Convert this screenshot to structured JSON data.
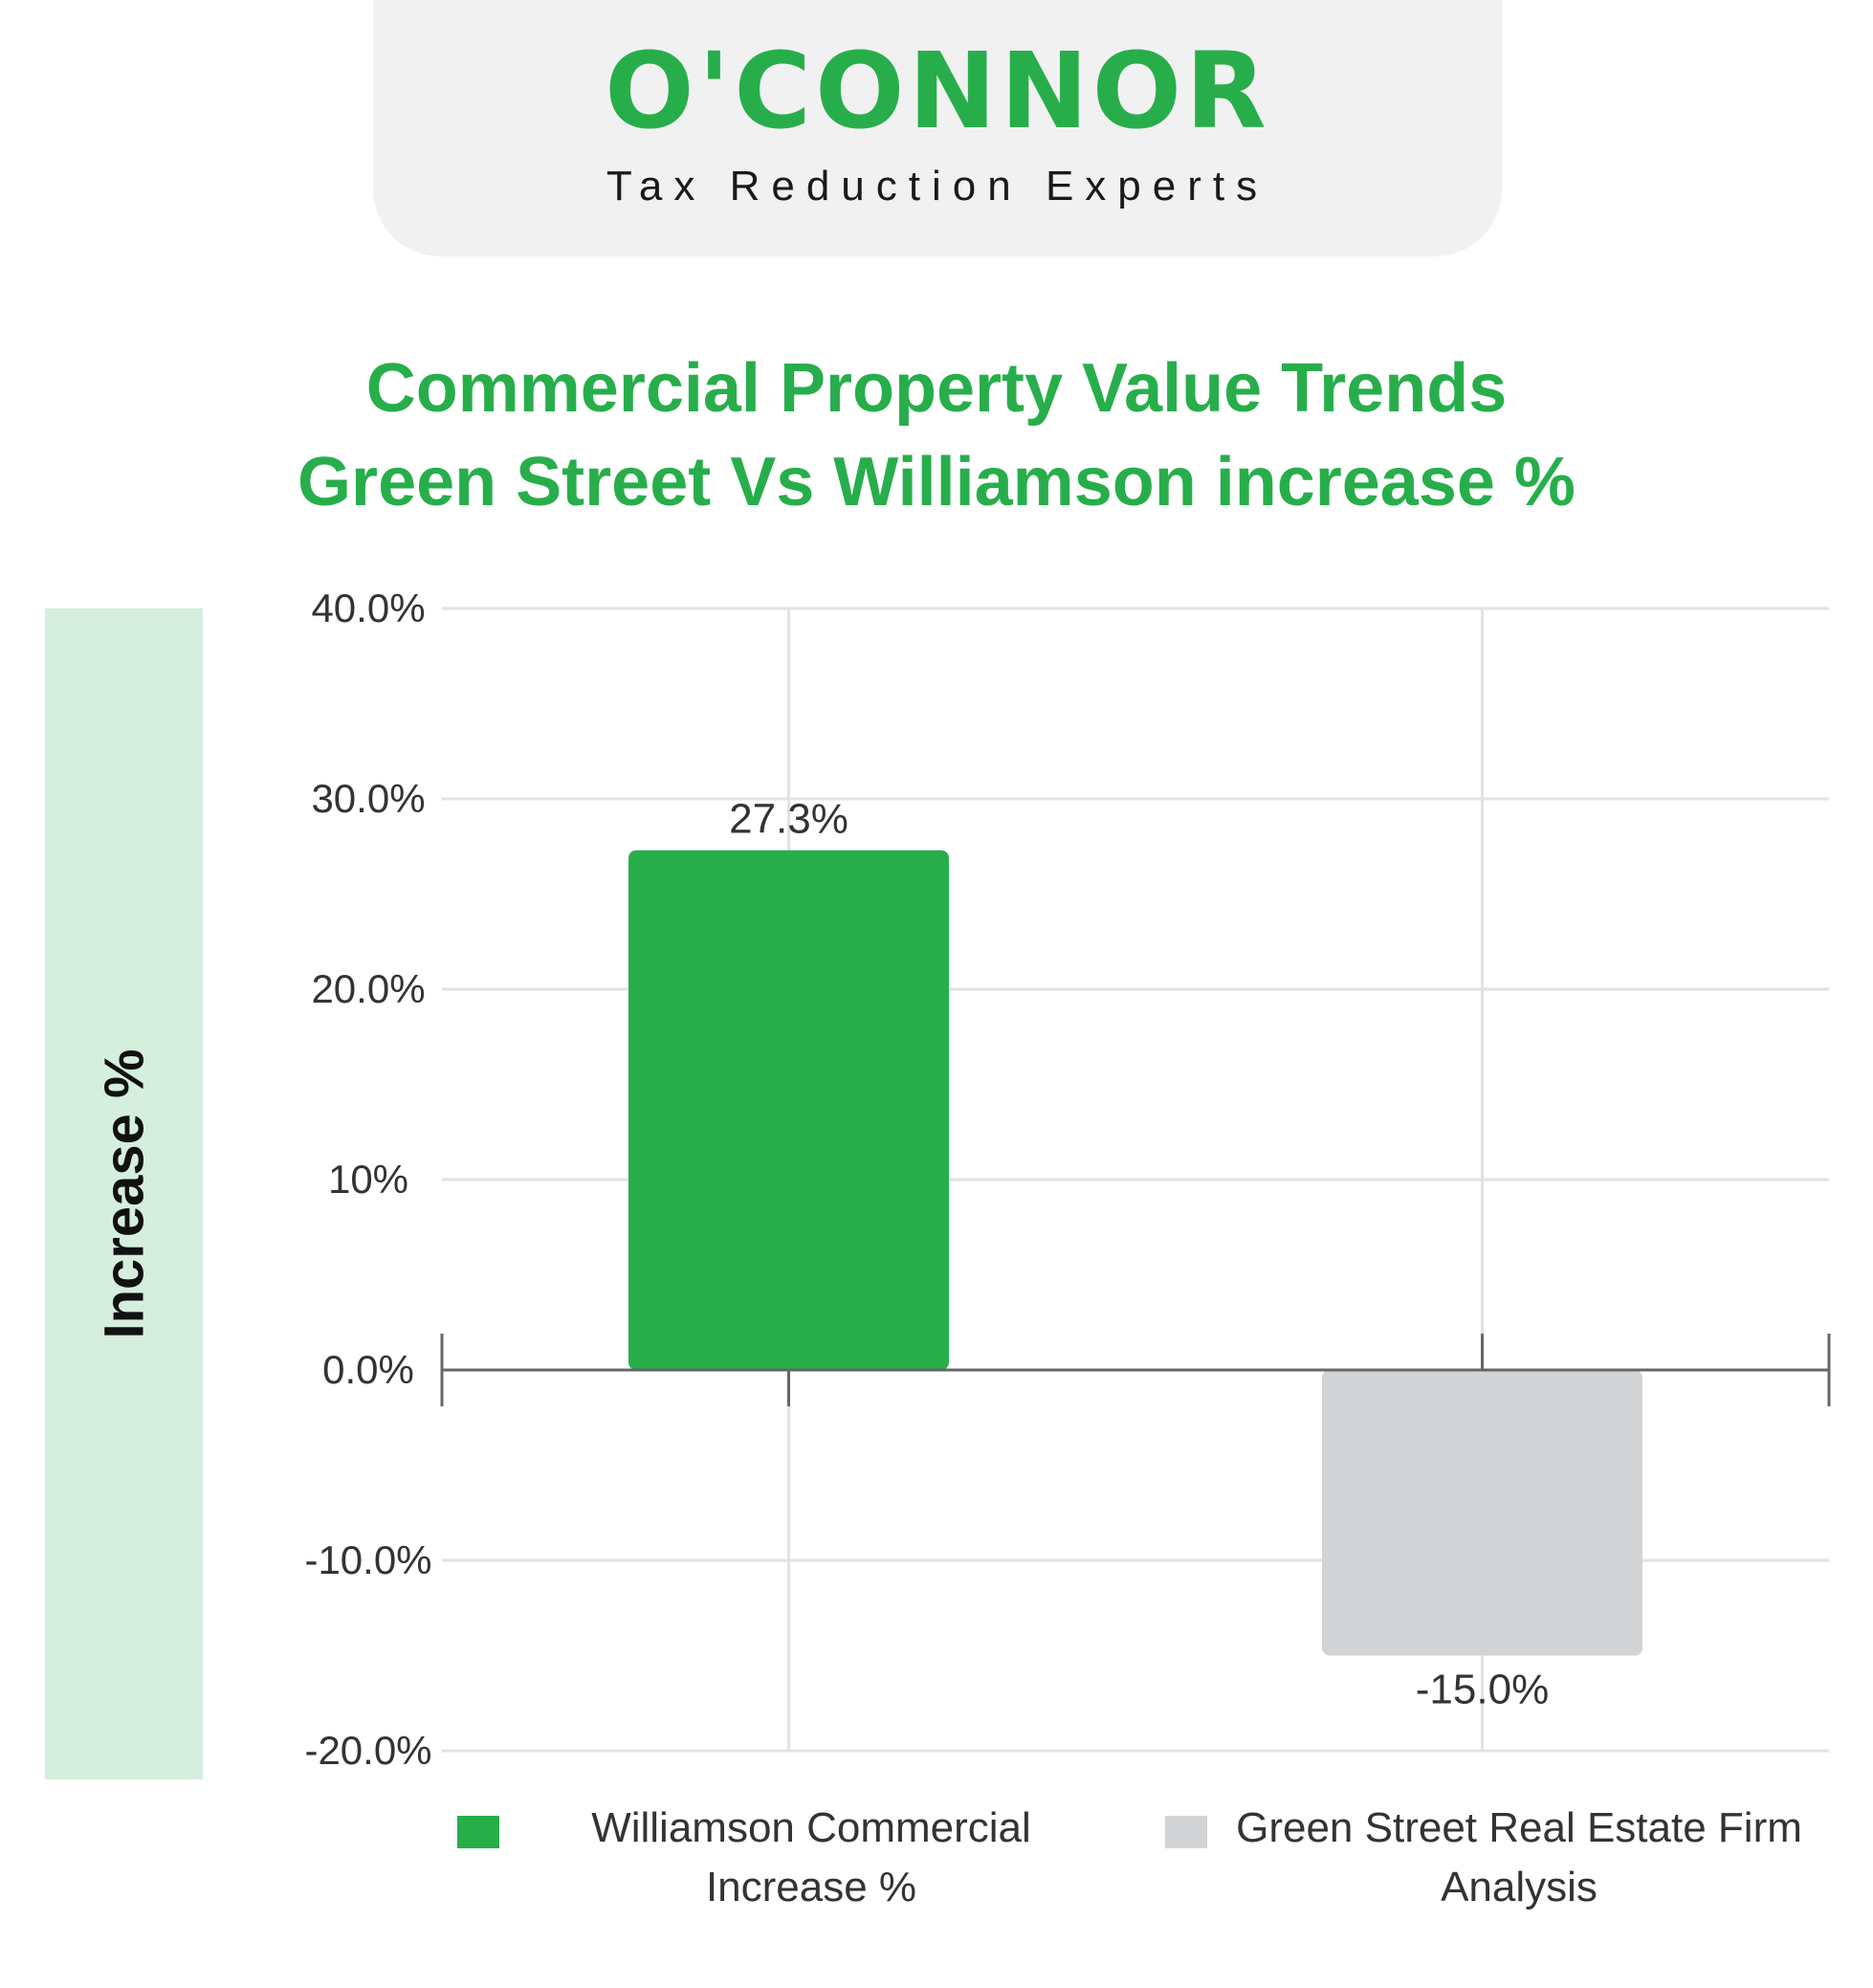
{
  "logo": {
    "name": "O'CONNOR",
    "tagline": "Tax Reduction Experts"
  },
  "colors": {
    "brand_green": "#27ae4b",
    "bar_gray": "#d2d3d5",
    "band_green": "#d5eedd",
    "grid": "#e2e2e2",
    "axis": "#666666"
  },
  "chart_data": {
    "type": "bar",
    "title": "Commercial Property Value Trends",
    "subtitle": "Green Street Vs Williamson increase %",
    "ylabel": "Increase %",
    "xlabel": "",
    "ylim": [
      -20,
      40
    ],
    "ytick_values": [
      40,
      30,
      20,
      10,
      0,
      -10,
      -20
    ],
    "ytick_labels": [
      "40.0%",
      "30.0%",
      "20.0%",
      "10%",
      "0.0%",
      "-10.0%",
      "-20.0%"
    ],
    "grid": true,
    "legend_position": "bottom",
    "series": [
      {
        "name": "Williamson Commercial Increase %",
        "value": 27.3,
        "label": "27.3%",
        "color": "#27ae4b"
      },
      {
        "name": "Green Street Real Estate Firm Analysis",
        "value": -15.0,
        "label": "-15.0%",
        "color": "#d2d3d5"
      }
    ]
  }
}
